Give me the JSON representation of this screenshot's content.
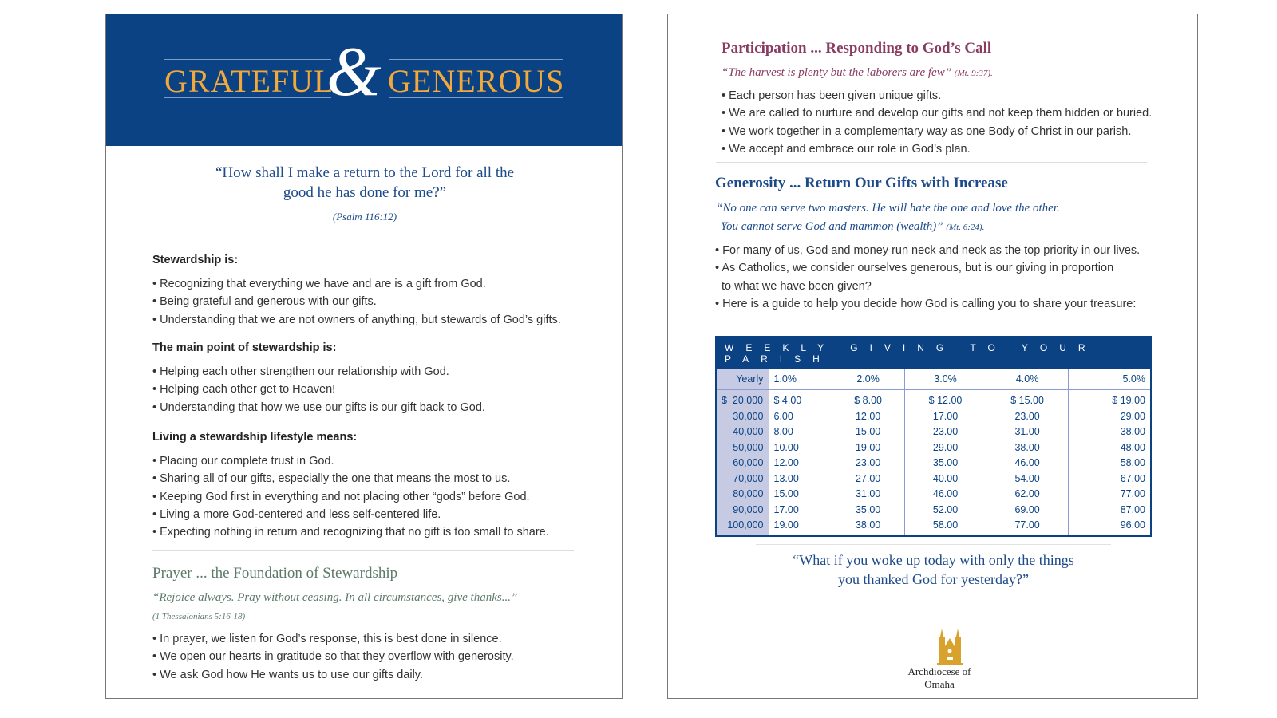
{
  "left": {
    "banner": {
      "word1": "GRATEFUL",
      "amp": "&",
      "word2": "GENEROUS"
    },
    "quote": {
      "line1": "“How shall I make a return to the Lord for all the",
      "line2": "good he has done for me?”",
      "cite": "(Psalm 116:12)"
    },
    "sections": [
      {
        "heading": "Stewardship is:",
        "items": [
          "Recognizing that everything we have and are is a gift from God.",
          "Being grateful and generous with our gifts.",
          "Understanding that we are not owners of anything, but stewards of God’s gifts."
        ]
      },
      {
        "heading": "The main point of stewardship is:",
        "items": [
          "Helping each other strengthen our relationship with God.",
          "Helping each other get to Heaven!",
          "Understanding that how we use our gifts is our gift back to God."
        ]
      },
      {
        "heading": "Living a stewardship lifestyle means:",
        "items": [
          "Placing our complete trust in God.",
          "Sharing all of our gifts, especially the one that means the most to us.",
          "Keeping God first in everything and not placing other “gods” before God.",
          "Living a more God-centered and less self-centered life.",
          "Expecting nothing in return and recognizing that no gift is too small to share."
        ]
      }
    ],
    "prayer": {
      "heading": "Prayer ... the Foundation of Stewardship",
      "quote": "“Rejoice always. Pray without ceasing. In all circumstances, give thanks...”",
      "cite": "(1 Thessalonians 5:16-18)",
      "items": [
        "In prayer, we listen for God’s response, this is best done in silence.",
        "We open our hearts in gratitude so that they overflow with generosity.",
        "We ask God how He wants us to use our gifts daily."
      ]
    }
  },
  "right": {
    "participation": {
      "heading": "Participation ... Responding to God’s Call",
      "quote": "“The harvest is plenty but the laborers are few”",
      "cite": "(Mt. 9:37).",
      "items": [
        "Each person has been given unique gifts.",
        "We are called to nurture and develop our gifts and not keep them hidden or buried.",
        "We work together in a complementary way as one Body of Christ in our parish.",
        "We accept and embrace our role in God’s plan."
      ]
    },
    "generosity": {
      "heading": "Generosity ... Return Our Gifts with Increase",
      "quote1": "“No one can serve two masters. He will hate the one and love the other.",
      "quote2": "You cannot serve God and mammon (wealth)”",
      "cite": "(Mt. 6:24).",
      "items": [
        "For many of us, God and money run neck and neck as the top priority in our lives.",
        "As Catholics, we consider ourselves generous, but is our giving in proportion",
        "to what we have been given?",
        "Here is a guide to help you decide how God is calling you to share your treasure:"
      ]
    },
    "table": {
      "title": "WEEKLY GIVING TO YOUR PARISH",
      "columns": [
        "Yearly",
        "1.0%",
        "2.0%",
        "3.0%",
        "4.0%",
        "5.0%"
      ],
      "rows": [
        [
          "$  20,000",
          "$ 4.00",
          "$ 8.00",
          "$ 12.00",
          "$ 15.00",
          "$ 19.00"
        ],
        [
          "30,000",
          "6.00",
          "12.00",
          "17.00",
          "23.00",
          "29.00"
        ],
        [
          "40,000",
          "8.00",
          "15.00",
          "23.00",
          "31.00",
          "38.00"
        ],
        [
          "50,000",
          "10.00",
          "19.00",
          "29.00",
          "38.00",
          "48.00"
        ],
        [
          "60,000",
          "12.00",
          "23.00",
          "35.00",
          "46.00",
          "58.00"
        ],
        [
          "70,000",
          "13.00",
          "27.00",
          "40.00",
          "54.00",
          "67.00"
        ],
        [
          "80,000",
          "15.00",
          "31.00",
          "46.00",
          "62.00",
          "77.00"
        ],
        [
          "90,000",
          "17.00",
          "35.00",
          "52.00",
          "69.00",
          "87.00"
        ],
        [
          "100,000",
          "19.00",
          "38.00",
          "58.00",
          "77.00",
          "96.00"
        ]
      ]
    },
    "closing": {
      "line1": "“What if you woke up today with only the things",
      "line2": "you thanked God for yesterday?”"
    },
    "logo": {
      "text": "Archdiocese of Omaha",
      "icon": "cathedral-icon"
    }
  },
  "colors": {
    "navy": "#0b4283",
    "gold": "#f2a93b",
    "maroon": "#8a3b62",
    "green": "#5c7a6a",
    "logo_gold": "#d9a22c"
  }
}
